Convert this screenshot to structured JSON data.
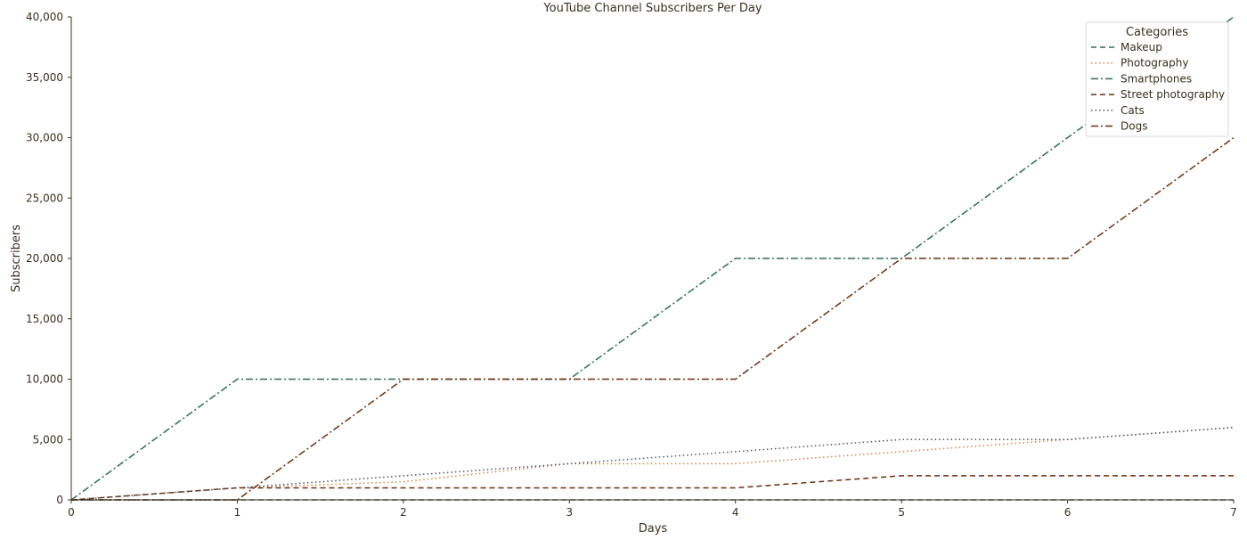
{
  "chart_data": {
    "type": "line",
    "title": "YouTube Channel Subscribers Per Day",
    "xlabel": "Days",
    "ylabel": "Subscribers",
    "xlim": [
      0,
      7
    ],
    "ylim": [
      0,
      40000
    ],
    "x_ticks": [
      "0",
      "1",
      "2",
      "3",
      "4",
      "5",
      "6",
      "7"
    ],
    "y_ticks": [
      "0",
      "5,000",
      "10,000",
      "15,000",
      "20,000",
      "25,000",
      "30,000",
      "35,000",
      "40,000"
    ],
    "grid": false,
    "legend": {
      "title": "Categories",
      "placement": "top-right"
    },
    "x": [
      0,
      1,
      2,
      3,
      4,
      5,
      6,
      7
    ],
    "series": [
      {
        "name": "Makeup",
        "values": [
          0,
          0,
          0,
          0,
          0,
          0,
          0,
          0
        ],
        "color": "#2f6b5a",
        "dash": "dashed"
      },
      {
        "name": "Photography",
        "values": [
          0,
          1000,
          1500,
          3000,
          3000,
          4000,
          5000,
          6000
        ],
        "color": "#d9823b",
        "dash": "dotted"
      },
      {
        "name": "Smartphones",
        "values": [
          0,
          10000,
          10000,
          10000,
          20000,
          20000,
          30000,
          40000
        ],
        "color": "#2f6b5a",
        "dash": "dashdot"
      },
      {
        "name": "Street photography",
        "values": [
          0,
          1000,
          1000,
          1000,
          1000,
          2000,
          2000,
          2000
        ],
        "color": "#6b2f0f",
        "dash": "dashed"
      },
      {
        "name": "Cats",
        "values": [
          0,
          1000,
          2000,
          3000,
          4000,
          5000,
          5000,
          6000
        ],
        "color": "#4a5a6a",
        "dash": "dotted"
      },
      {
        "name": "Dogs",
        "values": [
          0,
          0,
          10000,
          10000,
          10000,
          20000,
          20000,
          30000
        ],
        "color": "#6b2f0f",
        "dash": "dashdot"
      }
    ]
  }
}
